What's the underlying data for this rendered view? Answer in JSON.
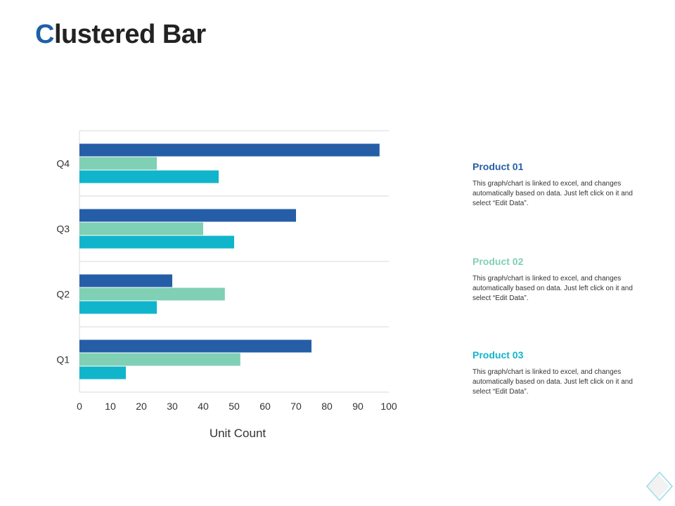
{
  "page": {
    "title_first_letter": "C",
    "title_rest": "lustered Bar"
  },
  "colors": {
    "title_accent": "#1f5fa8",
    "series": [
      "#255ea6",
      "#7fd0b4",
      "#11b5cb"
    ],
    "grid": "#d9d9d9"
  },
  "chart_data": {
    "type": "bar",
    "orientation": "horizontal",
    "categories": [
      "Q1",
      "Q2",
      "Q3",
      "Q4"
    ],
    "series": [
      {
        "values": [
          75,
          30,
          70,
          97
        ]
      },
      {
        "values": [
          52,
          47,
          40,
          25
        ]
      },
      {
        "values": [
          15,
          25,
          50,
          45
        ]
      }
    ],
    "xlabel": "Unit Count",
    "xlim": [
      0,
      100
    ],
    "xticks": [
      0,
      10,
      20,
      30,
      40,
      50,
      60,
      70,
      80,
      90,
      100
    ],
    "grid": true
  },
  "legend": [
    {
      "title": "Product 01",
      "color": "#255ea6",
      "description": "This graph/chart is linked to excel, and changes automatically based on data. Just left click on it and select “Edit Data”."
    },
    {
      "title": "Product 02",
      "color": "#7fd0b4",
      "description": "This graph/chart is linked to excel, and changes automatically based on data. Just left click on it and select “Edit Data”."
    },
    {
      "title": "Product 03",
      "color": "#11b5cb",
      "description": "This graph/chart is linked to excel, and changes automatically based on data. Just left click on it and select “Edit Data”."
    }
  ]
}
